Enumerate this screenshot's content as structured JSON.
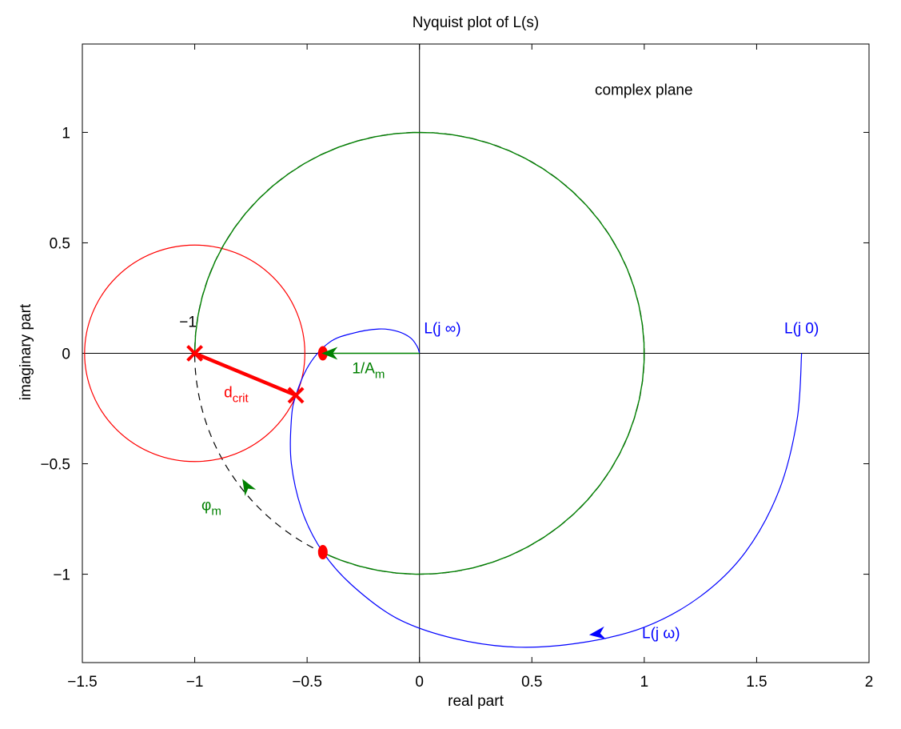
{
  "chart_data": {
    "type": "line",
    "title": "Nyquist plot of L(s)",
    "xlabel": "real part",
    "ylabel": "imaginary part",
    "xlim": [
      -1.5,
      2
    ],
    "ylim": [
      -1.4,
      1.4
    ],
    "grid": false,
    "x_ticks": [
      -1.5,
      -1,
      -0.5,
      0,
      0.5,
      1,
      1.5,
      2
    ],
    "x_tick_labels": [
      "−1.5",
      "−1",
      "−0.5",
      "0",
      "0.5",
      "1",
      "1.5",
      "2"
    ],
    "y_ticks": [
      -1,
      -0.5,
      0,
      0.5,
      1
    ],
    "y_tick_labels": [
      "−1",
      "−0.5",
      "0",
      "0.5",
      "1"
    ],
    "unit_circle": {
      "center": [
        0,
        0
      ],
      "radius": 1,
      "style": "dashed",
      "color": "#000000"
    },
    "critical_circle": {
      "center": [
        -1,
        0
      ],
      "radius": 0.49,
      "color": "#ff0000"
    },
    "nyquist_curve": {
      "color": "#0000ff",
      "points": [
        [
          1.7,
          0
        ],
        [
          1.68,
          -0.3
        ],
        [
          1.6,
          -0.62
        ],
        [
          1.45,
          -0.9
        ],
        [
          1.25,
          -1.1
        ],
        [
          1.0,
          -1.24
        ],
        [
          0.72,
          -1.31
        ],
        [
          0.43,
          -1.33
        ],
        [
          0.15,
          -1.29
        ],
        [
          -0.1,
          -1.2
        ],
        [
          -0.3,
          -1.05
        ],
        [
          -0.43,
          -0.9
        ],
        [
          -0.52,
          -0.72
        ],
        [
          -0.57,
          -0.5
        ],
        [
          -0.57,
          -0.3
        ],
        [
          -0.55,
          -0.19
        ],
        [
          -0.49,
          -0.05
        ],
        [
          -0.4,
          0.05
        ],
        [
          -0.3,
          0.09
        ],
        [
          -0.18,
          0.11
        ],
        [
          -0.1,
          0.1
        ],
        [
          -0.04,
          0.07
        ],
        [
          -0.01,
          0.03
        ],
        [
          0,
          0
        ]
      ]
    },
    "gain_margin_path": {
      "color": "#008000",
      "points": [
        [
          0,
          0
        ],
        [
          -0.43,
          0
        ]
      ]
    },
    "phase_margin_arc": {
      "color": "#008000",
      "center": [
        -1,
        0
      ],
      "start_point": [
        -0.43,
        -0.9
      ],
      "end_point": [
        -1,
        0
      ]
    },
    "critical_distance": {
      "color": "#ff0000",
      "from": [
        -1,
        0
      ],
      "to": [
        -0.55,
        -0.19
      ]
    },
    "markers": [
      {
        "type": "x",
        "x": -1,
        "y": 0,
        "color": "#ff0000"
      },
      {
        "type": "x",
        "x": -0.55,
        "y": -0.19,
        "color": "#ff0000"
      },
      {
        "type": "dot",
        "x": -0.43,
        "y": 0,
        "color": "#ff0000"
      },
      {
        "type": "dot",
        "x": -0.43,
        "y": -0.9,
        "color": "#ff0000"
      }
    ],
    "arrows": [
      {
        "color": "#0000ff",
        "x": 0.79,
        "y": -1.27,
        "dx": -1,
        "dy": -0.13
      },
      {
        "color": "#008000",
        "x": -0.4,
        "y": 0,
        "dx": -1,
        "dy": 0
      },
      {
        "color": "#008000",
        "x": -0.77,
        "y": -0.6,
        "dx": -0.5,
        "dy": 0.85
      }
    ],
    "annotations": [
      {
        "text": "complex plane",
        "x": 0.78,
        "y": 1.17,
        "color": "#000000",
        "anchor": "start"
      },
      {
        "text": "−1",
        "x": -1.03,
        "y": 0.12,
        "color": "#000000",
        "anchor": "middle"
      },
      {
        "text": "L(j ∞)",
        "x": 0.02,
        "y": 0.09,
        "color": "#0000ff",
        "anchor": "start"
      },
      {
        "text": "L(j 0)",
        "x": 1.7,
        "y": 0.09,
        "color": "#0000ff",
        "anchor": "middle"
      },
      {
        "text": "L(j ω)",
        "x": 0.99,
        "y": -1.29,
        "color": "#0000ff",
        "anchor": "start"
      },
      {
        "text": "1/A",
        "sub": "m",
        "x": -0.3,
        "y": -0.09,
        "color": "#008000",
        "anchor": "start"
      },
      {
        "text": "d",
        "sub": "crit",
        "x": -0.87,
        "y": -0.2,
        "color": "#ff0000",
        "anchor": "start"
      },
      {
        "text": "φ",
        "sub": "m",
        "x": -0.97,
        "y": -0.71,
        "color": "#008000",
        "anchor": "start"
      }
    ]
  }
}
